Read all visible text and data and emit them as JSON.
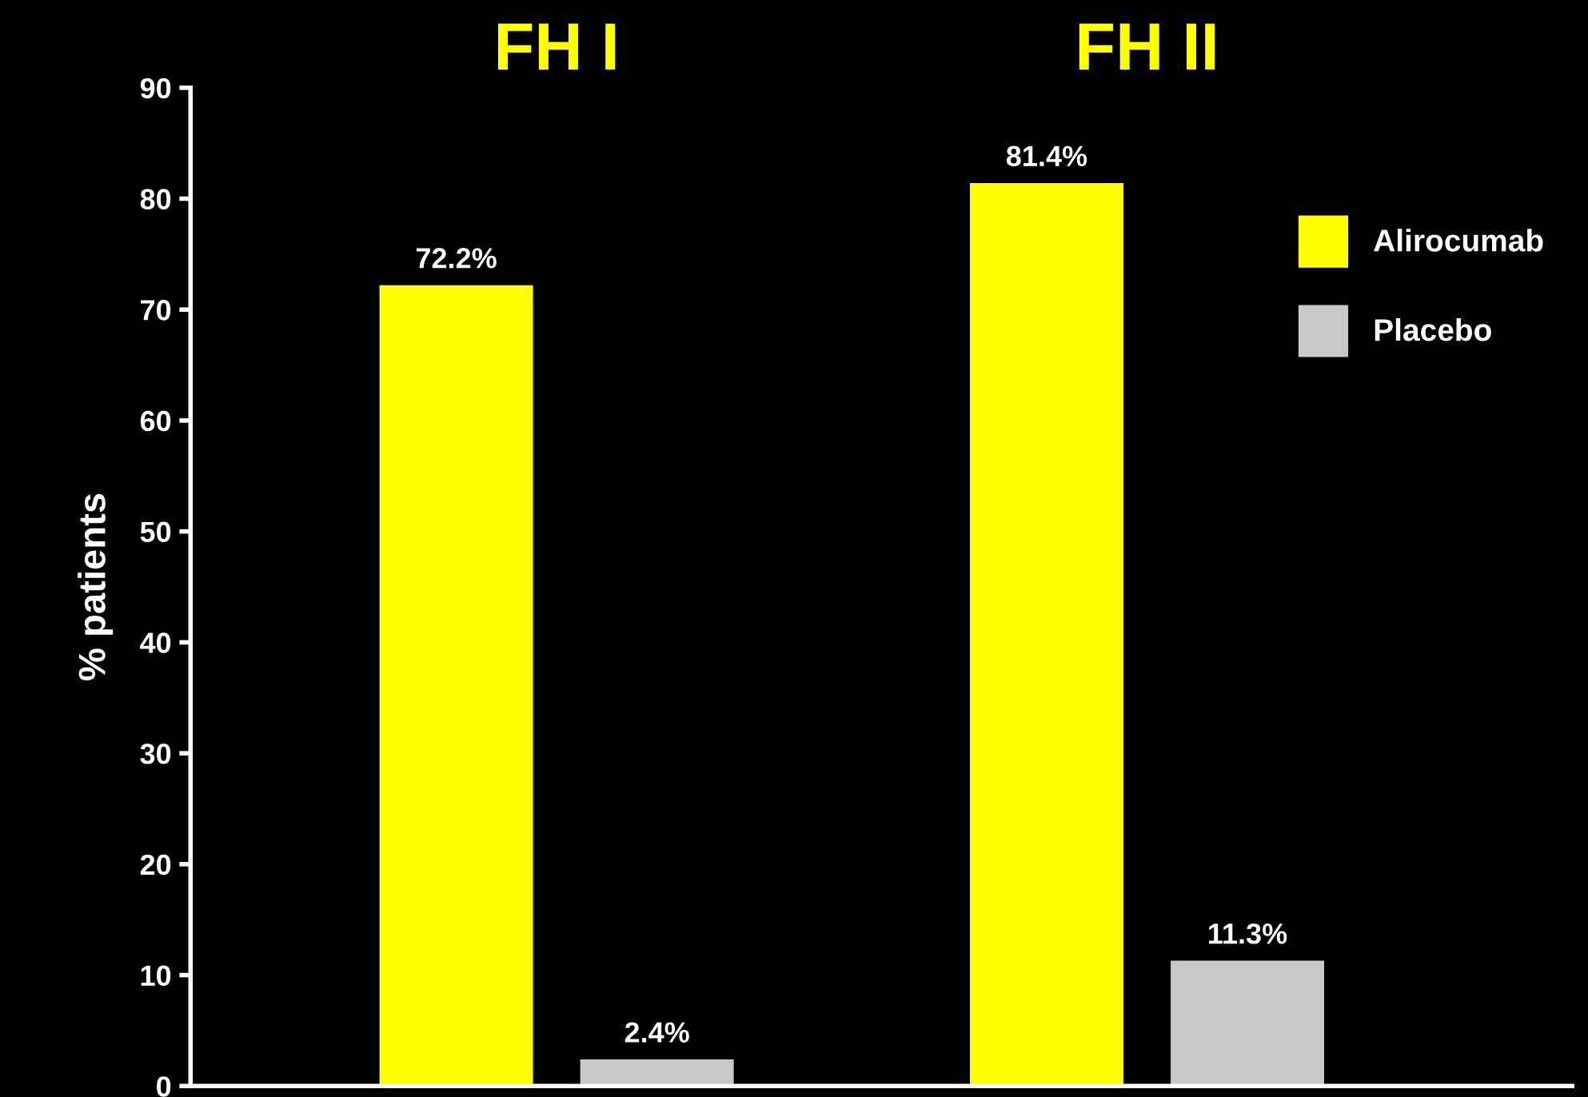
{
  "chart_data": {
    "type": "bar",
    "ylabel": "% patients",
    "categories": [
      "FH I",
      "FH II"
    ],
    "series": [
      {
        "name": "Alirocumab",
        "color": "#ffff00",
        "values": [
          72.2,
          81.4
        ],
        "value_labels": [
          "72.2%",
          "81.4%"
        ]
      },
      {
        "name": "Placebo",
        "color": "#c8c8c8",
        "values": [
          2.4,
          11.3
        ],
        "value_labels": [
          "2.4%",
          "11.3%"
        ]
      }
    ],
    "ylim": [
      0,
      90
    ],
    "yticks": [
      0,
      10,
      20,
      30,
      40,
      50,
      60,
      70,
      80,
      90
    ],
    "grid": false,
    "legend": "top right"
  }
}
